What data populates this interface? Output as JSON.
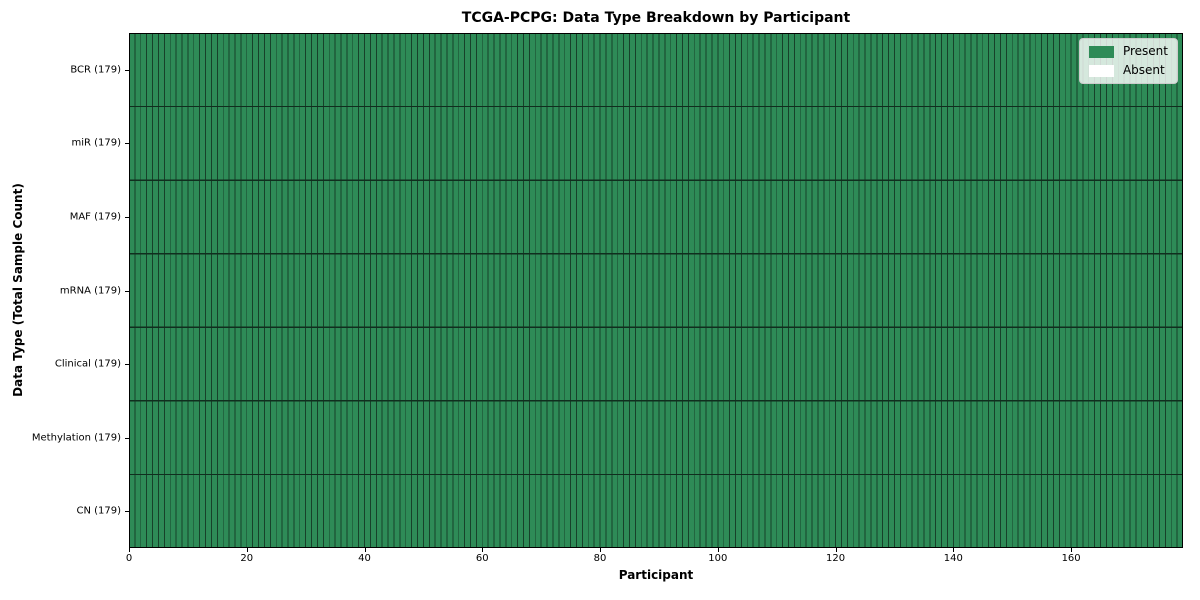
{
  "chart_data": {
    "type": "heatmap",
    "title": "TCGA-PCPG: Data Type Breakdown by Participant",
    "xlabel": "Participant",
    "ylabel": "Data Type (Total Sample Count)",
    "x_range": [
      0,
      179
    ],
    "x_ticks": [
      0,
      20,
      40,
      60,
      80,
      100,
      120,
      140,
      160
    ],
    "n_participants": 179,
    "rows": [
      {
        "label": "BCR (179)",
        "present_count": 179,
        "absent_count": 0
      },
      {
        "label": "miR (179)",
        "present_count": 179,
        "absent_count": 0
      },
      {
        "label": "MAF (179)",
        "present_count": 179,
        "absent_count": 0
      },
      {
        "label": "mRNA (179)",
        "present_count": 179,
        "absent_count": 0
      },
      {
        "label": "Clinical (179)",
        "present_count": 179,
        "absent_count": 0
      },
      {
        "label": "Methylation (179)",
        "present_count": 179,
        "absent_count": 0
      },
      {
        "label": "CN (179)",
        "present_count": 179,
        "absent_count": 0
      }
    ],
    "legend": [
      {
        "label": "Present",
        "color": "#2e8b57"
      },
      {
        "label": "Absent",
        "color": "#ffffff"
      }
    ],
    "legend_position": "upper right",
    "colors": {
      "present": "#2e8b57",
      "absent": "#ffffff",
      "cell_edge": "#17412a",
      "row_edge": "#102e1e",
      "axis": "#000000",
      "background": "#ffffff"
    },
    "grid": "cell-borders"
  }
}
